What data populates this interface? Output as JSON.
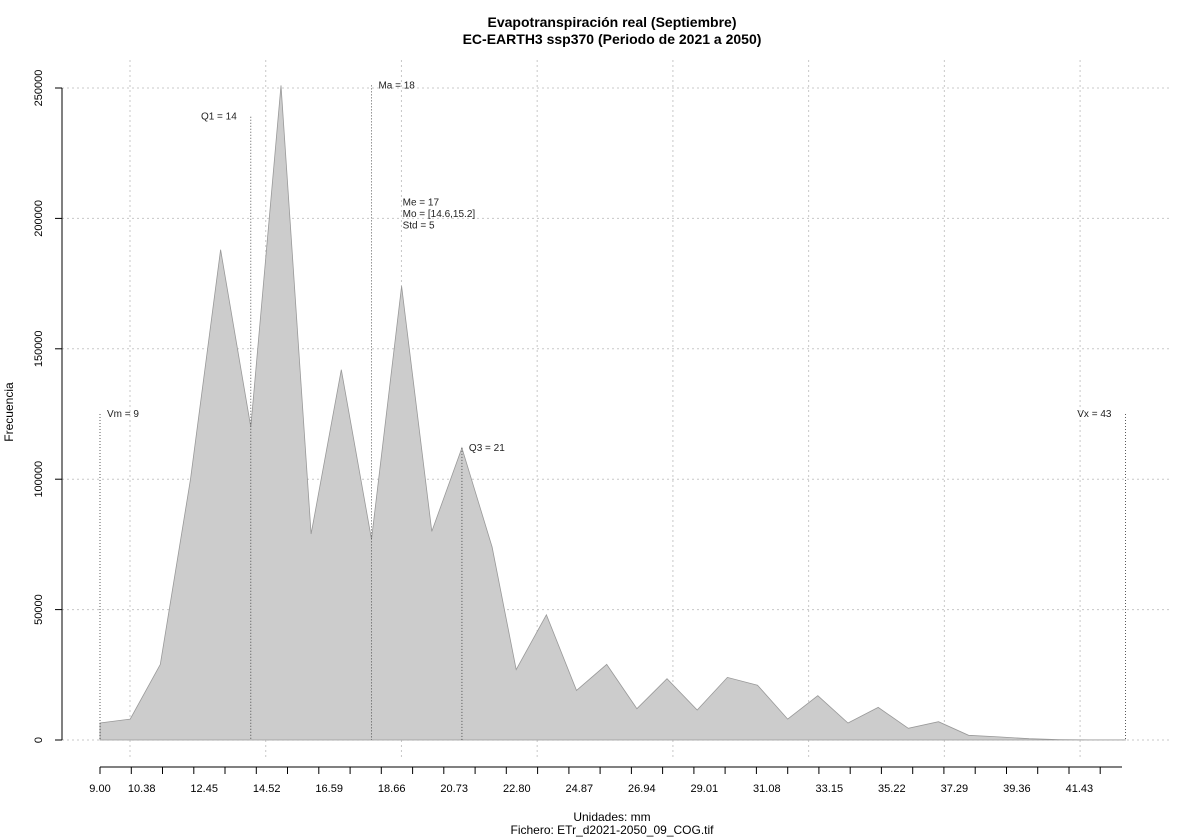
{
  "chart_data": {
    "type": "area",
    "title": "Evapotranspiración real (Septiembre)",
    "subtitle": "EC-EARTH3 ssp370 (Periodo de 2021 a 2050)",
    "xlabel": "Unidades: mm",
    "ylabel": "Frecuencia",
    "caption": "Fichero: ETr_d2021-2050_09_COG.tif",
    "xlim": [
      9.0,
      43.1
    ],
    "ylim": [
      0,
      250000
    ],
    "grid": true,
    "x_tick_labels": [
      "9.00",
      "10.38",
      "12.45",
      "14.52",
      "16.59",
      "18.66",
      "20.73",
      "22.80",
      "24.87",
      "26.94",
      "29.01",
      "31.08",
      "33.15",
      "35.22",
      "37.29",
      "39.36",
      "41.43"
    ],
    "y_tick_labels": [
      "0",
      "50000",
      "100000",
      "150000",
      "200000",
      "250000"
    ],
    "y_ticks": [
      0,
      50000,
      100000,
      150000,
      200000,
      250000
    ],
    "fill_color": "#cccccc",
    "line_color": "#999999",
    "points": [
      {
        "x": 9.0,
        "y": 6500
      },
      {
        "x": 10.0,
        "y": 8000
      },
      {
        "x": 11.0,
        "y": 29000
      },
      {
        "x": 12.0,
        "y": 100000
      },
      {
        "x": 13.0,
        "y": 188000
      },
      {
        "x": 14.0,
        "y": 120000
      },
      {
        "x": 15.0,
        "y": 251000
      },
      {
        "x": 16.0,
        "y": 79000
      },
      {
        "x": 17.0,
        "y": 142000
      },
      {
        "x": 18.0,
        "y": 77000
      },
      {
        "x": 19.0,
        "y": 174000
      },
      {
        "x": 20.0,
        "y": 80000
      },
      {
        "x": 21.0,
        "y": 112000
      },
      {
        "x": 22.0,
        "y": 74000
      },
      {
        "x": 22.8,
        "y": 27000
      },
      {
        "x": 23.8,
        "y": 48000
      },
      {
        "x": 24.8,
        "y": 19000
      },
      {
        "x": 25.8,
        "y": 29000
      },
      {
        "x": 26.8,
        "y": 12000
      },
      {
        "x": 27.8,
        "y": 23500
      },
      {
        "x": 28.8,
        "y": 11500
      },
      {
        "x": 29.8,
        "y": 24000
      },
      {
        "x": 30.8,
        "y": 21000
      },
      {
        "x": 31.8,
        "y": 8000
      },
      {
        "x": 32.8,
        "y": 17000
      },
      {
        "x": 33.8,
        "y": 6500
      },
      {
        "x": 34.8,
        "y": 12500
      },
      {
        "x": 35.8,
        "y": 4500
      },
      {
        "x": 36.8,
        "y": 7000
      },
      {
        "x": 37.8,
        "y": 1800
      },
      {
        "x": 38.8,
        "y": 1200
      },
      {
        "x": 39.8,
        "y": 500
      },
      {
        "x": 40.8,
        "y": 150
      },
      {
        "x": 41.8,
        "y": 50
      },
      {
        "x": 43.0,
        "y": 20
      }
    ],
    "annotations": [
      {
        "label": "Vm = 9",
        "x": 9.0,
        "y": 125000,
        "text_y": 125000,
        "anchor": "start"
      },
      {
        "label": "Q1 = 14",
        "x": 14.0,
        "y": 239000,
        "text_y": 239000,
        "anchor": "end"
      },
      {
        "label": "Ma = 18",
        "x": 18.0,
        "y": 251000,
        "text_y": 251000,
        "anchor": "start"
      },
      {
        "label": "Q3 = 21",
        "x": 21.0,
        "y": 112000,
        "text_y": 112000,
        "anchor": "start"
      },
      {
        "label": "Vx = 43",
        "x": 43.0,
        "y": 125000,
        "text_y": 125000,
        "anchor": "end"
      }
    ],
    "stats_block": [
      "Me = 17",
      "Mo = [14.6,15.2]",
      "Std = 5"
    ],
    "stats_block_pos": {
      "x": 19.0,
      "y": 205000
    }
  }
}
